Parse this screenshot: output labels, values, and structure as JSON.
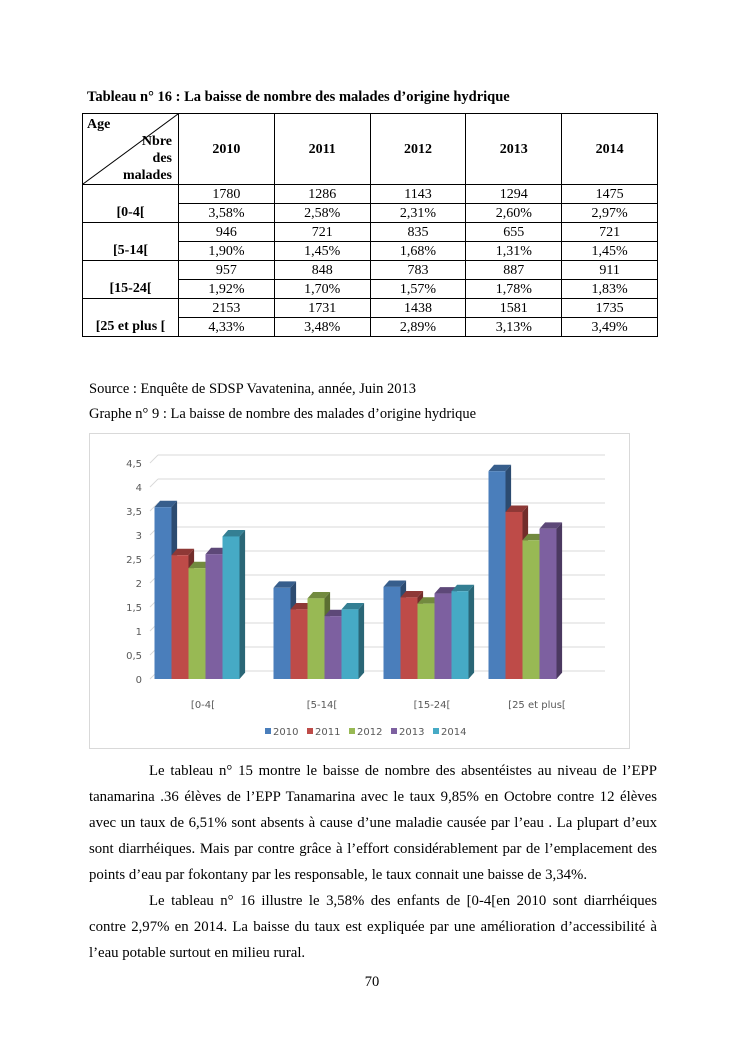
{
  "table": {
    "title": "Tableau n° 16 : La baisse de nombre des malades d’origine hydrique",
    "corner_top": "Age",
    "corner_bottom": [
      "Nbre",
      "des",
      "malades"
    ],
    "years": [
      "2010",
      "2011",
      "2012",
      "2013",
      "2014"
    ],
    "rows": [
      {
        "age": "[0-4[",
        "counts": [
          "1780",
          "1286",
          "1143",
          "1294",
          "1475"
        ],
        "pcts": [
          "3,58%",
          "2,58%",
          "2,31%",
          "2,60%",
          "2,97%"
        ]
      },
      {
        "age": "[5-14[",
        "counts": [
          "946",
          "721",
          "835",
          "655",
          "721"
        ],
        "pcts": [
          "1,90%",
          "1,45%",
          "1,68%",
          "1,31%",
          "1,45%"
        ]
      },
      {
        "age": "[15-24[",
        "counts": [
          "957",
          "848",
          "783",
          "887",
          "911"
        ],
        "pcts": [
          "1,92%",
          "1,70%",
          "1,57%",
          "1,78%",
          "1,83%"
        ]
      },
      {
        "age": "[25 et plus [",
        "counts": [
          "2153",
          "1731",
          "1438",
          "1581",
          "1735"
        ],
        "pcts": [
          "4,33%",
          "3,48%",
          "2,89%",
          "3,13%",
          "3,49%"
        ]
      }
    ]
  },
  "source": "Source : Enquête de SDSP Vavatenina, année, Juin 2013",
  "graph_caption": "Graphe n° 9 : La baisse de nombre des malades d’origine hydrique",
  "chart_data": {
    "type": "bar",
    "title": "",
    "categories": [
      "[0-4[",
      "[5-14[",
      "[15-24[",
      "[25 et plus["
    ],
    "ylim": [
      0,
      4.5
    ],
    "yticks": [
      "0",
      "0,5",
      "1",
      "1,5",
      "2",
      "2,5",
      "3",
      "3,5",
      "4",
      "4,5"
    ],
    "legend": "bottom",
    "grid": true,
    "series": [
      {
        "name": "2010",
        "color": "#4a7ebb",
        "values": [
          3.58,
          1.9,
          1.92,
          4.33
        ]
      },
      {
        "name": "2011",
        "color": "#be4b48",
        "values": [
          2.58,
          1.45,
          1.7,
          3.48
        ]
      },
      {
        "name": "2012",
        "color": "#98b954",
        "values": [
          2.31,
          1.68,
          1.57,
          2.89
        ]
      },
      {
        "name": "2013",
        "color": "#7d60a0",
        "values": [
          2.6,
          1.31,
          1.78,
          3.13
        ]
      },
      {
        "name": "2014",
        "color": "#46aac5",
        "values": [
          2.97,
          1.45,
          1.83,
          null
        ]
      }
    ]
  },
  "paragraphs": [
    [
      "Le tableau n° 15  montre le baisse de nombre des absentéistes au niveau de l’EPP",
      "tanamarina .36 élèves de l’EPP Tanamarina avec le taux 9,85% en Octobre contre 12 élèves",
      "avec un taux de 6,51% sont absents à cause d’une maladie causée par l’eau . La plupart d’eux",
      "sont diarrhéiques. Mais par contre grâce à l’effort considérablement par de l’emplacement des",
      "points d’eau par fokontany par les responsable, le taux connait une baisse de 3,34%."
    ],
    [
      "Le tableau n° 16 illustre le 3,58%  des enfants de [0-4[en 2010 sont diarrhéiques",
      "contre 2,97% en 2014. La baisse du taux est expliquée par une amélioration d’accessibilité à",
      "l’eau potable surtout en milieu rural."
    ]
  ],
  "page_number": "70"
}
